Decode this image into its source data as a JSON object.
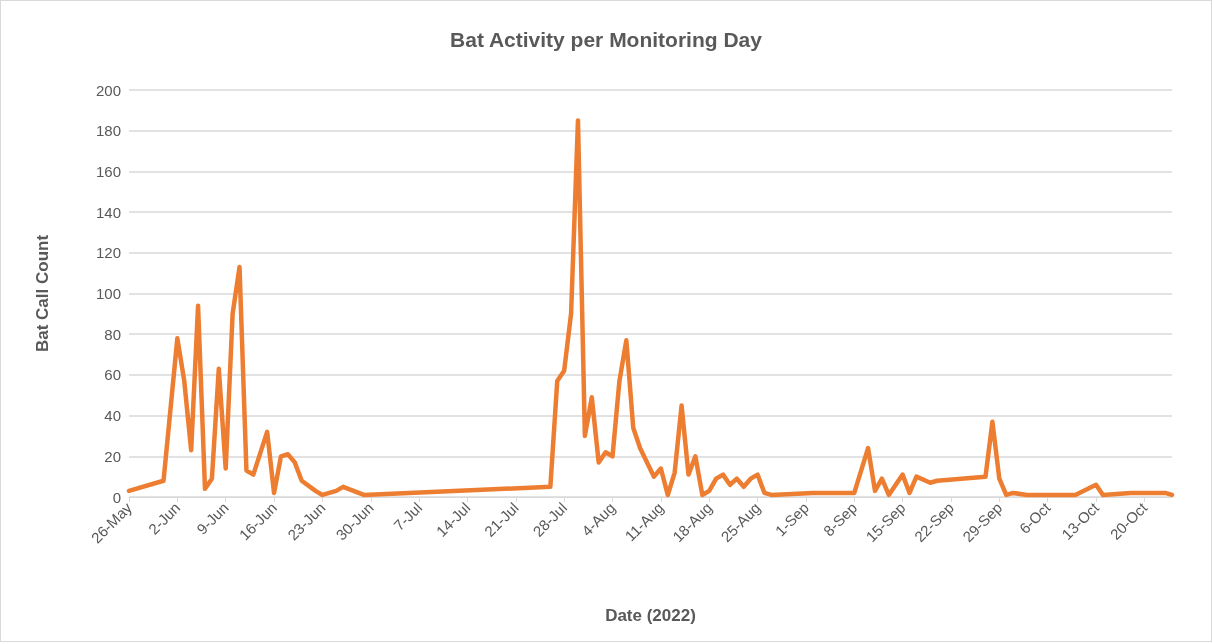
{
  "chart_data": {
    "type": "line",
    "title": "Bat Activity per Monitoring Day",
    "xlabel": "Date (2022)",
    "ylabel": "Bat Call Count",
    "x": [
      "2022-05-26",
      "2022-05-31",
      "2022-06-02",
      "2022-06-03",
      "2022-06-04",
      "2022-06-05",
      "2022-06-06",
      "2022-06-07",
      "2022-06-08",
      "2022-06-09",
      "2022-06-10",
      "2022-06-11",
      "2022-06-12",
      "2022-06-13",
      "2022-06-15",
      "2022-06-16",
      "2022-06-17",
      "2022-06-18",
      "2022-06-19",
      "2022-06-20",
      "2022-06-22",
      "2022-06-23",
      "2022-06-25",
      "2022-06-26",
      "2022-06-29",
      "2022-07-26",
      "2022-07-27",
      "2022-07-28",
      "2022-07-29",
      "2022-07-30",
      "2022-07-31",
      "2022-08-01",
      "2022-08-02",
      "2022-08-03",
      "2022-08-04",
      "2022-08-05",
      "2022-08-06",
      "2022-08-07",
      "2022-08-08",
      "2022-08-10",
      "2022-08-11",
      "2022-08-12",
      "2022-08-13",
      "2022-08-14",
      "2022-08-15",
      "2022-08-16",
      "2022-08-17",
      "2022-08-18",
      "2022-08-19",
      "2022-08-20",
      "2022-08-21",
      "2022-08-22",
      "2022-08-23",
      "2022-08-24",
      "2022-08-25",
      "2022-08-26",
      "2022-08-27",
      "2022-09-02",
      "2022-09-08",
      "2022-09-10",
      "2022-09-11",
      "2022-09-12",
      "2022-09-13",
      "2022-09-14",
      "2022-09-15",
      "2022-09-16",
      "2022-09-17",
      "2022-09-19",
      "2022-09-20",
      "2022-09-27",
      "2022-09-28",
      "2022-09-29",
      "2022-09-30",
      "2022-10-01",
      "2022-10-03",
      "2022-10-10",
      "2022-10-13",
      "2022-10-14",
      "2022-10-18",
      "2022-10-23",
      "2022-10-24"
    ],
    "series": [
      {
        "color": "#ed7d31",
        "values": [
          3,
          8,
          78,
          57,
          23,
          94,
          4,
          9,
          63,
          14,
          90,
          113,
          13,
          11,
          32,
          2,
          20,
          21,
          17,
          8,
          3,
          1,
          3,
          5,
          1,
          5,
          57,
          62,
          90,
          185,
          30,
          49,
          17,
          22,
          20,
          57,
          77,
          34,
          24,
          10,
          14,
          1,
          12,
          45,
          11,
          20,
          1,
          3,
          9,
          11,
          6,
          9,
          5,
          9,
          11,
          2,
          1,
          2,
          2,
          24,
          3,
          9,
          1,
          6,
          11,
          2,
          10,
          7,
          8,
          10,
          37,
          9,
          1,
          2,
          1,
          1,
          6,
          1,
          2,
          2,
          1
        ]
      }
    ],
    "xlim": [
      "2022-05-26",
      "2022-10-24"
    ],
    "xticks": [
      {
        "value": "2022-05-26",
        "label": "26-May"
      },
      {
        "value": "2022-06-02",
        "label": "2-Jun"
      },
      {
        "value": "2022-06-09",
        "label": "9-Jun"
      },
      {
        "value": "2022-06-16",
        "label": "16-Jun"
      },
      {
        "value": "2022-06-23",
        "label": "23-Jun"
      },
      {
        "value": "2022-06-30",
        "label": "30-Jun"
      },
      {
        "value": "2022-07-07",
        "label": "7-Jul"
      },
      {
        "value": "2022-07-14",
        "label": "14-Jul"
      },
      {
        "value": "2022-07-21",
        "label": "21-Jul"
      },
      {
        "value": "2022-07-28",
        "label": "28-Jul"
      },
      {
        "value": "2022-08-04",
        "label": "4-Aug"
      },
      {
        "value": "2022-08-11",
        "label": "11-Aug"
      },
      {
        "value": "2022-08-18",
        "label": "18-Aug"
      },
      {
        "value": "2022-08-25",
        "label": "25-Aug"
      },
      {
        "value": "2022-09-01",
        "label": "1-Sep"
      },
      {
        "value": "2022-09-08",
        "label": "8-Sep"
      },
      {
        "value": "2022-09-15",
        "label": "15-Sep"
      },
      {
        "value": "2022-09-22",
        "label": "22-Sep"
      },
      {
        "value": "2022-09-29",
        "label": "29-Sep"
      },
      {
        "value": "2022-10-06",
        "label": "6-Oct"
      },
      {
        "value": "2022-10-13",
        "label": "13-Oct"
      },
      {
        "value": "2022-10-20",
        "label": "20-Oct"
      }
    ],
    "ylim": [
      0,
      200
    ],
    "yticks": [
      0,
      20,
      40,
      60,
      80,
      100,
      120,
      140,
      160,
      180,
      200
    ],
    "grid": "y",
    "marker": "none",
    "line_style": "solid"
  }
}
